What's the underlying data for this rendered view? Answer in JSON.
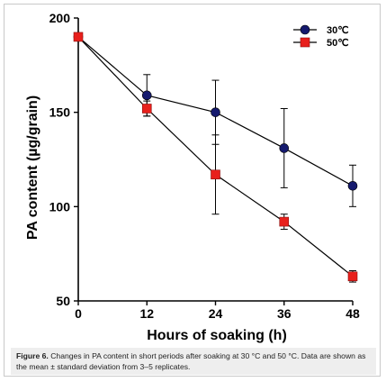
{
  "chart_data": {
    "type": "line",
    "title": "",
    "xlabel": "Hours of soaking (h)",
    "ylabel": "PA content (µg/grain)",
    "x": [
      0,
      12,
      24,
      36,
      48
    ],
    "x_ticks": [
      "0",
      "12",
      "24",
      "36",
      "48"
    ],
    "y_ticks": [
      "50",
      "100",
      "150",
      "200"
    ],
    "xlim": [
      0,
      48
    ],
    "ylim": [
      50,
      200
    ],
    "grid": false,
    "legend_position": "top-right",
    "series": [
      {
        "name": "30℃",
        "marker": "circle",
        "color": "#151a6e",
        "values": [
          190,
          159,
          150,
          131,
          111
        ],
        "errors": [
          0,
          11,
          17,
          21,
          11
        ]
      },
      {
        "name": "50℃",
        "marker": "square",
        "color": "#e8201c",
        "values": [
          190,
          152,
          117,
          92,
          63
        ],
        "errors": [
          0,
          4,
          21,
          4,
          3
        ]
      }
    ]
  },
  "caption": {
    "label": "Figure 6.",
    "text": " Changes in PA content in short periods after soaking at 30 °C and 50 °C. Data are shown as the mean ± standard deviation from 3–5 replicates."
  }
}
